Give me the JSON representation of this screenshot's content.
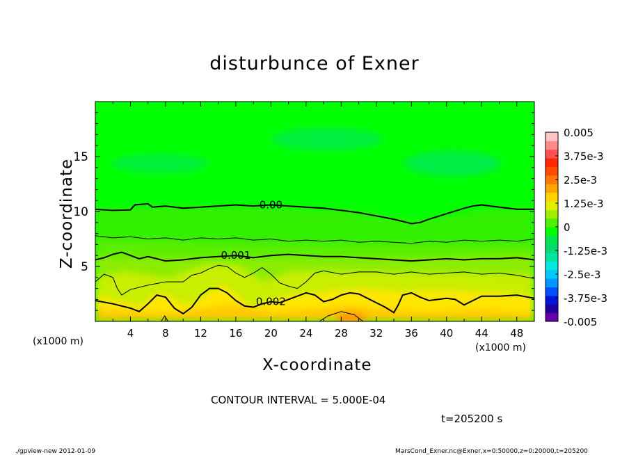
{
  "chart_data": {
    "type": "heatmap",
    "title": "disturbunce of Exner",
    "xlabel": "X-coordinate",
    "ylabel": "Z-coordinate",
    "x_unit": "(x1000 m)",
    "xlim": [
      0,
      50
    ],
    "ylim": [
      0,
      20
    ],
    "x_ticks": [
      "4",
      "8",
      "12",
      "16",
      "20",
      "24",
      "28",
      "32",
      "36",
      "40",
      "44",
      "48"
    ],
    "y_ticks": [
      "5",
      "10",
      "15"
    ],
    "colorbar": {
      "min": -0.005,
      "max": 0.005,
      "labels": [
        "0.005",
        "3.75e-3",
        "2.5e-3",
        "1.25e-3",
        "0",
        "-1.25e-3",
        "-2.5e-3",
        "-3.75e-3",
        "-0.005"
      ],
      "colors": [
        "#6600aa",
        "#1e00a0",
        "#0014dc",
        "#0050ff",
        "#0096ff",
        "#00c8ff",
        "#00e8e0",
        "#00e6a0",
        "#00dc6e",
        "#00e650",
        "#00ff00",
        "#50f000",
        "#a0ee00",
        "#e6ee00",
        "#ffd200",
        "#ffa500",
        "#ff7800",
        "#ff4b00",
        "#ff2800",
        "#ff5050",
        "#ff8a8a",
        "#ffc4c4"
      ]
    },
    "contours": [
      {
        "label": "0.00",
        "style": "major",
        "points": [
          [
            0,
            10.2
          ],
          [
            2,
            10.1
          ],
          [
            4,
            10.15
          ],
          [
            4.5,
            10.6
          ],
          [
            6,
            10.7
          ],
          [
            6.5,
            10.4
          ],
          [
            8,
            10.5
          ],
          [
            10,
            10.3
          ],
          [
            12,
            10.4
          ],
          [
            14,
            10.5
          ],
          [
            16,
            10.6
          ],
          [
            18,
            10.5
          ],
          [
            20,
            10.6
          ],
          [
            22,
            10.5
          ],
          [
            24,
            10.4
          ],
          [
            26,
            10.3
          ],
          [
            28,
            10.1
          ],
          [
            30,
            9.9
          ],
          [
            32,
            9.6
          ],
          [
            34,
            9.3
          ],
          [
            36,
            8.9
          ],
          [
            37,
            9.0
          ],
          [
            38,
            9.3
          ],
          [
            40,
            9.8
          ],
          [
            42,
            10.3
          ],
          [
            43,
            10.5
          ],
          [
            44,
            10.6
          ],
          [
            46,
            10.4
          ],
          [
            48,
            10.2
          ],
          [
            50,
            10.2
          ]
        ]
      },
      {
        "label": "",
        "style": "minor",
        "points": [
          [
            0,
            7.8
          ],
          [
            2,
            7.6
          ],
          [
            4,
            7.7
          ],
          [
            6,
            7.5
          ],
          [
            8,
            7.6
          ],
          [
            10,
            7.4
          ],
          [
            12,
            7.6
          ],
          [
            14,
            7.5
          ],
          [
            16,
            7.6
          ],
          [
            18,
            7.4
          ],
          [
            20,
            7.5
          ],
          [
            22,
            7.3
          ],
          [
            24,
            7.4
          ],
          [
            26,
            7.3
          ],
          [
            28,
            7.4
          ],
          [
            30,
            7.2
          ],
          [
            32,
            7.3
          ],
          [
            34,
            7.2
          ],
          [
            36,
            7.1
          ],
          [
            38,
            7.3
          ],
          [
            40,
            7.2
          ],
          [
            42,
            7.4
          ],
          [
            44,
            7.3
          ],
          [
            46,
            7.4
          ],
          [
            48,
            7.3
          ],
          [
            50,
            7.5
          ]
        ]
      },
      {
        "label": "0.001",
        "style": "major",
        "points": [
          [
            0,
            5.6
          ],
          [
            1,
            5.8
          ],
          [
            2,
            6.1
          ],
          [
            3,
            6.3
          ],
          [
            4,
            6.0
          ],
          [
            5,
            5.7
          ],
          [
            6,
            5.9
          ],
          [
            7,
            5.7
          ],
          [
            8,
            5.5
          ],
          [
            10,
            5.6
          ],
          [
            12,
            5.8
          ],
          [
            14,
            5.9
          ],
          [
            16,
            6.0
          ],
          [
            18,
            5.8
          ],
          [
            20,
            6.0
          ],
          [
            22,
            6.1
          ],
          [
            24,
            6.0
          ],
          [
            26,
            5.9
          ],
          [
            28,
            5.9
          ],
          [
            30,
            5.8
          ],
          [
            32,
            5.7
          ],
          [
            34,
            5.6
          ],
          [
            36,
            5.5
          ],
          [
            38,
            5.6
          ],
          [
            40,
            5.7
          ],
          [
            42,
            5.6
          ],
          [
            44,
            5.7
          ],
          [
            46,
            5.7
          ],
          [
            48,
            5.8
          ],
          [
            50,
            5.6
          ]
        ]
      },
      {
        "label": "",
        "style": "minor",
        "points": [
          [
            0,
            3.6
          ],
          [
            1,
            4.3
          ],
          [
            2,
            4.0
          ],
          [
            2.5,
            3.0
          ],
          [
            3,
            2.4
          ],
          [
            4,
            2.9
          ],
          [
            6,
            3.3
          ],
          [
            8,
            3.6
          ],
          [
            10,
            3.6
          ],
          [
            11,
            4.2
          ],
          [
            12,
            4.4
          ],
          [
            13,
            4.8
          ],
          [
            14,
            5.1
          ],
          [
            15,
            5.0
          ],
          [
            16,
            4.4
          ],
          [
            17,
            4.0
          ],
          [
            18,
            4.4
          ],
          [
            19,
            4.9
          ],
          [
            20,
            4.3
          ],
          [
            21,
            3.5
          ],
          [
            22,
            3.2
          ],
          [
            23,
            3.0
          ],
          [
            24,
            3.6
          ],
          [
            25,
            4.4
          ],
          [
            26,
            4.6
          ],
          [
            28,
            4.3
          ],
          [
            30,
            4.5
          ],
          [
            32,
            4.5
          ],
          [
            34,
            4.3
          ],
          [
            36,
            4.5
          ],
          [
            38,
            4.3
          ],
          [
            40,
            4.4
          ],
          [
            42,
            4.5
          ],
          [
            44,
            4.3
          ],
          [
            46,
            4.4
          ],
          [
            48,
            4.2
          ],
          [
            50,
            3.9
          ]
        ]
      },
      {
        "label": "0.002",
        "style": "major",
        "points": [
          [
            0,
            1.9
          ],
          [
            2,
            1.6
          ],
          [
            4,
            1.2
          ],
          [
            5,
            0.9
          ],
          [
            6,
            1.6
          ],
          [
            7,
            2.4
          ],
          [
            8,
            2.2
          ],
          [
            9,
            1.2
          ],
          [
            10,
            0.7
          ],
          [
            11,
            1.3
          ],
          [
            12,
            2.4
          ],
          [
            13,
            3.0
          ],
          [
            14,
            3.0
          ],
          [
            15,
            2.6
          ],
          [
            16,
            1.9
          ],
          [
            17,
            1.4
          ],
          [
            18,
            1.3
          ],
          [
            19,
            1.6
          ],
          [
            20,
            1.8
          ],
          [
            21,
            1.7
          ],
          [
            22,
            2.0
          ],
          [
            24,
            2.6
          ],
          [
            25,
            2.4
          ],
          [
            26,
            1.8
          ],
          [
            27,
            2.0
          ],
          [
            28,
            2.4
          ],
          [
            29,
            2.6
          ],
          [
            30,
            2.5
          ],
          [
            31,
            2.1
          ],
          [
            32,
            1.7
          ],
          [
            33,
            1.3
          ],
          [
            34,
            0.8
          ],
          [
            34.5,
            1.5
          ],
          [
            35,
            2.4
          ],
          [
            36,
            2.6
          ],
          [
            37,
            2.2
          ],
          [
            38,
            1.9
          ],
          [
            40,
            2.1
          ],
          [
            41,
            2.0
          ],
          [
            42,
            1.5
          ],
          [
            43,
            1.9
          ],
          [
            44,
            2.3
          ],
          [
            46,
            2.3
          ],
          [
            48,
            2.4
          ],
          [
            50,
            2.1
          ]
        ]
      },
      {
        "label": "",
        "style": "minor",
        "points": [
          [
            25.5,
            0.0
          ],
          [
            26.5,
            0.5
          ],
          [
            28,
            0.9
          ],
          [
            29.5,
            0.6
          ],
          [
            30.5,
            0.0
          ]
        ]
      },
      {
        "label": "",
        "style": "minor",
        "points": [
          [
            7.5,
            0.0
          ],
          [
            7.9,
            0.5
          ],
          [
            8.3,
            0.0
          ]
        ]
      }
    ]
  },
  "text": {
    "contour_interval": "CONTOUR INTERVAL = 5.000E-04",
    "time": "t=205200 s",
    "footer_left": "./gpview-new   2012-01-09",
    "footer_right": "MarsCond_Exner.nc@Exner,x=0:50000,z=0:20000,t=205200"
  },
  "colors": {
    "frame": "#000000",
    "background": "#ffffff",
    "contour": "#000000"
  }
}
